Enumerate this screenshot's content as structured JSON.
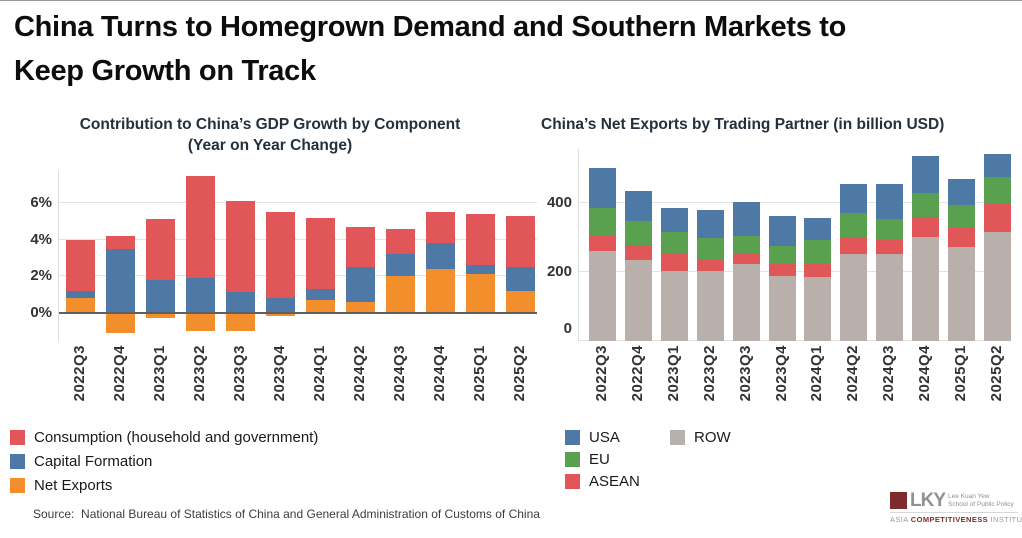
{
  "page": {
    "title_line1": "China Turns to Homegrown Demand and Southern Markets to",
    "title_line2": "Keep Growth on Track",
    "source": "Source:  National Bureau of Statistics of China and General Administration of Customs of China"
  },
  "logo": {
    "acronym": "LKY",
    "school_line1": "Lee Kuan Yew",
    "school_line2": "School of Public Policy",
    "institute_prefix": "ASIA",
    "institute_highlight": "COMPETITIVENESS",
    "institute_suffix": "INSTITUTE",
    "brand_maroon": "#7f2a2d",
    "brand_gray": "#8f9193"
  },
  "chart_data": [
    {
      "type": "bar",
      "stacked": true,
      "title": "Contribution to China’s GDP Growth by Component",
      "subtitle": "(Year on Year Change)",
      "xlabel": "",
      "ylabel": "",
      "grid": true,
      "legend_position": "bottom-left",
      "ylim": [
        -1.5,
        7.8
      ],
      "y_ticks": [
        {
          "value": 0,
          "label": "0%"
        },
        {
          "value": 2,
          "label": "2%"
        },
        {
          "value": 4,
          "label": "4%"
        },
        {
          "value": 6,
          "label": "6%"
        }
      ],
      "categories": [
        "2022Q3",
        "2022Q4",
        "2023Q1",
        "2023Q2",
        "2023Q3",
        "2023Q4",
        "2024Q1",
        "2024Q2",
        "2024Q3",
        "2024Q4",
        "2025Q1",
        "2025Q2"
      ],
      "series": [
        {
          "name": "Consumption (household and government)",
          "color": "#e15759",
          "values": [
            2.8,
            0.7,
            3.3,
            5.6,
            5.0,
            4.7,
            3.9,
            2.2,
            1.4,
            1.7,
            2.8,
            2.8
          ]
        },
        {
          "name": "Capital Formation",
          "color": "#4e79a7",
          "values": [
            0.4,
            3.5,
            1.8,
            1.9,
            1.1,
            0.8,
            0.6,
            1.9,
            1.2,
            1.4,
            0.5,
            1.3
          ]
        },
        {
          "name": "Net Exports",
          "color": "#f28e2b",
          "values": [
            0.8,
            -1.1,
            -0.3,
            -1.0,
            -1.0,
            -0.2,
            0.7,
            0.6,
            2.0,
            2.4,
            2.1,
            1.2
          ]
        }
      ],
      "stack_bottom_to_top": [
        "Net Exports",
        "Capital Formation",
        "Consumption (household and government)"
      ],
      "units": "percentage points"
    },
    {
      "type": "bar",
      "stacked": true,
      "title": "China’s Net Exports by Trading Partner (in billion USD)",
      "subtitle": "",
      "xlabel": "",
      "ylabel": "",
      "grid": true,
      "legend_position": "bottom-left",
      "ylim": [
        0,
        556
      ],
      "y_ticks": [
        {
          "value": 0,
          "label": "0"
        },
        {
          "value": 200,
          "label": "200"
        },
        {
          "value": 400,
          "label": "400"
        }
      ],
      "categories": [
        "2022Q3",
        "2022Q4",
        "2023Q1",
        "2023Q2",
        "2023Q3",
        "2023Q4",
        "2024Q1",
        "2024Q2",
        "2024Q3",
        "2024Q4",
        "2025Q1",
        "2025Q2"
      ],
      "series": [
        {
          "name": "USA",
          "color": "#4e79a7",
          "values": [
            116,
            87,
            69,
            79,
            100,
            87,
            64,
            84,
            99,
            105,
            77,
            66
          ]
        },
        {
          "name": "EU",
          "color": "#59a14f",
          "values": [
            79,
            70,
            61,
            63,
            53,
            51,
            65,
            71,
            63,
            71,
            64,
            79
          ]
        },
        {
          "name": "ASEAN",
          "color": "#e15759",
          "values": [
            46,
            44,
            53,
            34,
            27,
            36,
            41,
            50,
            39,
            58,
            58,
            79
          ]
        },
        {
          "name": "ROW",
          "color": "#bab0ab",
          "values": [
            260,
            234,
            203,
            203,
            224,
            188,
            186,
            251,
            253,
            301,
            272,
            317
          ]
        }
      ],
      "stack_bottom_to_top": [
        "ROW",
        "ASEAN",
        "EU",
        "USA"
      ],
      "units": "billion USD"
    }
  ]
}
